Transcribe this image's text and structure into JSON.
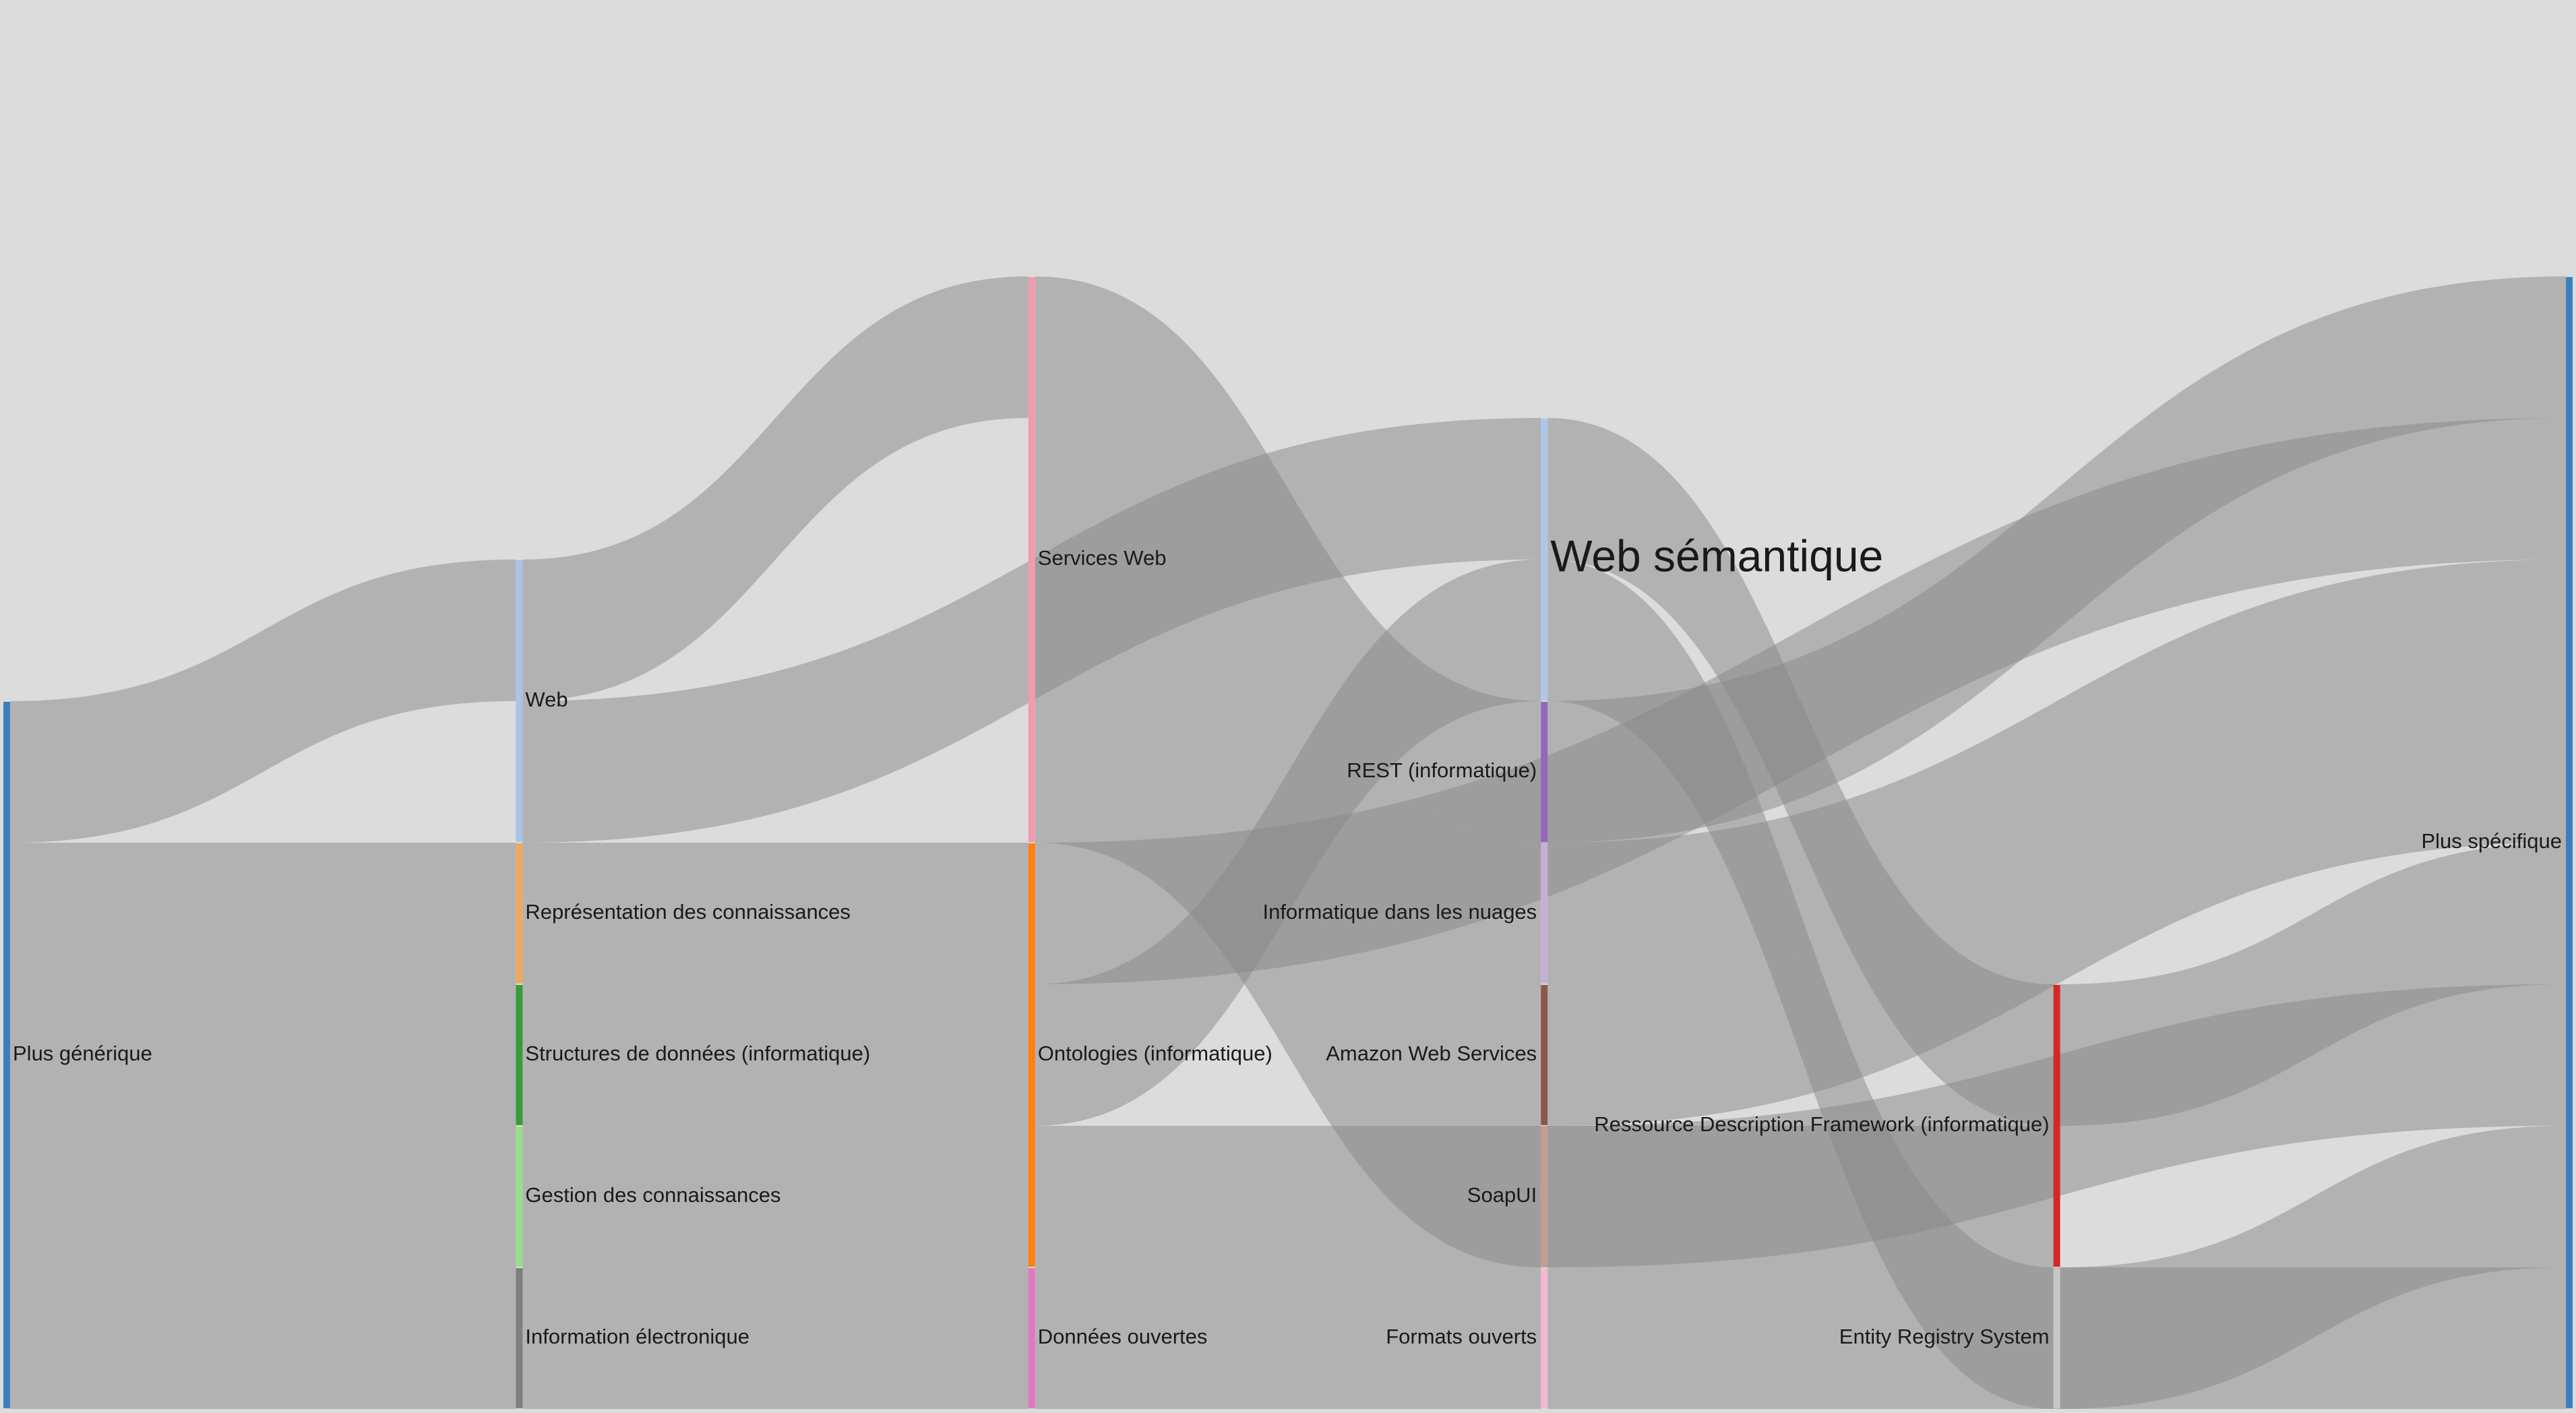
{
  "background_color": "#dcdcdc",
  "link_color": "#888888",
  "focus_color": "#ff0000",
  "nodes": [
    {
      "id": "plus_generique",
      "label": "Plus générique",
      "color": "#3b7fbf",
      "label_side": "right"
    },
    {
      "id": "web",
      "label": "Web",
      "color": "#a9c4e6",
      "label_side": "right"
    },
    {
      "id": "representation",
      "label": "Représentation des connaissances",
      "color": "#f0a860",
      "label_side": "right"
    },
    {
      "id": "structures",
      "label": "Structures de données (informatique)",
      "color": "#3a9a3a",
      "label_side": "right"
    },
    {
      "id": "gestion",
      "label": "Gestion des connaissances",
      "color": "#98df8a",
      "label_side": "right"
    },
    {
      "id": "info_electronique",
      "label": "Information électronique",
      "color": "#7f7f7f",
      "label_side": "right"
    },
    {
      "id": "services_web",
      "label": "Services Web",
      "color": "#f29aae",
      "label_side": "right"
    },
    {
      "id": "ontologies",
      "label": "Ontologies (informatique)",
      "color": "#ff7f0e",
      "label_side": "right"
    },
    {
      "id": "web_semantique",
      "label": "Web sémantique",
      "color": "#aec7e8",
      "label_side": "right",
      "focus": true
    },
    {
      "id": "donnees_ouvertes",
      "label": "Données ouvertes",
      "color": "#e377c2",
      "label_side": "right"
    },
    {
      "id": "rest",
      "label": "REST (informatique)",
      "color": "#9467bd",
      "label_side": "left"
    },
    {
      "id": "nuages",
      "label": "Informatique dans les nuages",
      "color": "#c5b0d5",
      "label_side": "left"
    },
    {
      "id": "aws",
      "label": "Amazon Web Services",
      "color": "#8c564b",
      "label_side": "left"
    },
    {
      "id": "soapui",
      "label": "SoapUI",
      "color": "#c49c94",
      "label_side": "left"
    },
    {
      "id": "rdf",
      "label": "Ressource Description Framework (informatique)",
      "color": "#d62728",
      "label_side": "left"
    },
    {
      "id": "ers",
      "label": "Entity Registry System",
      "color": "#c7c7c7",
      "label_side": "left"
    },
    {
      "id": "formats_ouverts",
      "label": "Formats ouverts",
      "color": "#f7b6d2",
      "label_side": "left"
    },
    {
      "id": "plus_specifique",
      "label": "Plus spécifique",
      "color": "#3b7fbf",
      "label_side": "left"
    }
  ],
  "links": [
    {
      "source": "plus_generique",
      "target": "web",
      "value": 1
    },
    {
      "source": "plus_generique",
      "target": "representation",
      "value": 1
    },
    {
      "source": "plus_generique",
      "target": "structures",
      "value": 1
    },
    {
      "source": "plus_generique",
      "target": "gestion",
      "value": 1
    },
    {
      "source": "plus_generique",
      "target": "info_electronique",
      "value": 1
    },
    {
      "source": "web",
      "target": "services_web",
      "value": 1
    },
    {
      "source": "web",
      "target": "web_semantique",
      "value": 1
    },
    {
      "source": "representation",
      "target": "ontologies",
      "value": 1
    },
    {
      "source": "structures",
      "target": "ontologies",
      "value": 1
    },
    {
      "source": "gestion",
      "target": "ontologies",
      "value": 1
    },
    {
      "source": "info_electronique",
      "target": "donnees_ouvertes",
      "value": 1
    },
    {
      "source": "services_web",
      "target": "rest",
      "value": 1
    },
    {
      "source": "services_web",
      "target": "nuages",
      "value": 1
    },
    {
      "source": "services_web",
      "target": "aws",
      "value": 1
    },
    {
      "source": "services_web",
      "target": "soapui",
      "value": 1
    },
    {
      "source": "ontologies",
      "target": "plus_specifique",
      "value": 1
    },
    {
      "source": "ontologies",
      "target": "web_semantique",
      "value": 1
    },
    {
      "source": "ontologies",
      "target": "rdf",
      "value": 1
    },
    {
      "source": "web_semantique",
      "target": "rdf",
      "value": 1
    },
    {
      "source": "web_semantique",
      "target": "ers",
      "value": 1
    },
    {
      "source": "donnees_ouvertes",
      "target": "formats_ouverts",
      "value": 1
    },
    {
      "source": "rest",
      "target": "plus_specifique",
      "value": 1
    },
    {
      "source": "nuages",
      "target": "plus_specifique",
      "value": 1
    },
    {
      "source": "aws",
      "target": "plus_specifique",
      "value": 1
    },
    {
      "source": "soapui",
      "target": "plus_specifique",
      "value": 1
    },
    {
      "source": "rdf",
      "target": "plus_specifique",
      "value": 1
    },
    {
      "source": "ers",
      "target": "plus_specifique",
      "value": 1
    },
    {
      "source": "formats_ouverts",
      "target": "plus_specifique",
      "value": 1
    }
  ]
}
